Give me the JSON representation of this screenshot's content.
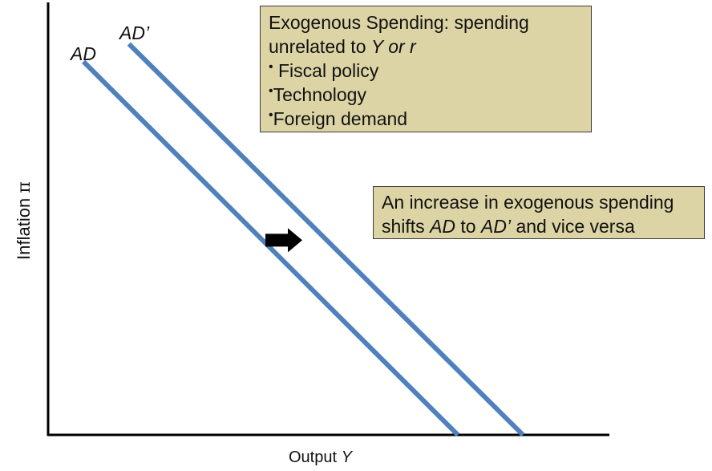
{
  "chart_data": {
    "type": "line",
    "title": "",
    "xlabel": "Output Y",
    "ylabel": "Inflation π",
    "xlabel_parts": {
      "text": "Output ",
      "var": "Y"
    },
    "ylabel_parts": {
      "text": "Inflation ",
      "var": "π"
    },
    "xlim": [
      0,
      100
    ],
    "ylim": [
      0,
      100
    ],
    "grid": false,
    "ticks": false,
    "series": [
      {
        "name": "AD",
        "color": "#4f81bd",
        "x": [
          6.3,
          73.0
        ],
        "y": [
          86.3,
          0
        ]
      },
      {
        "name": "AD’",
        "color": "#4f81bd",
        "x": [
          14.4,
          84.6
        ],
        "y": [
          90.4,
          0
        ]
      }
    ],
    "shift_arrow": {
      "direction": "right",
      "color": "#000000",
      "x": 42,
      "y": 45
    },
    "annotations": {
      "exogenous_box": {
        "line1": "Exogenous Spending: spending",
        "line2_text": "unrelated to ",
        "line2_italic": "Y or r",
        "bullets": [
          {
            "dot": "•",
            "text": " Fiscal policy"
          },
          {
            "dot": "•",
            "text": "Technology"
          },
          {
            "dot": "•",
            "text": "Foreign demand"
          }
        ],
        "bg_color": "#ddd4a6"
      },
      "increase_box": {
        "line1": "An increase in exogenous spending",
        "line2_pre": "shifts ",
        "line2_ad": "AD",
        "line2_mid": " to ",
        "line2_adprime": "AD’",
        "line2_post": " and vice versa",
        "bg_color": "#ddd4a6"
      }
    }
  }
}
